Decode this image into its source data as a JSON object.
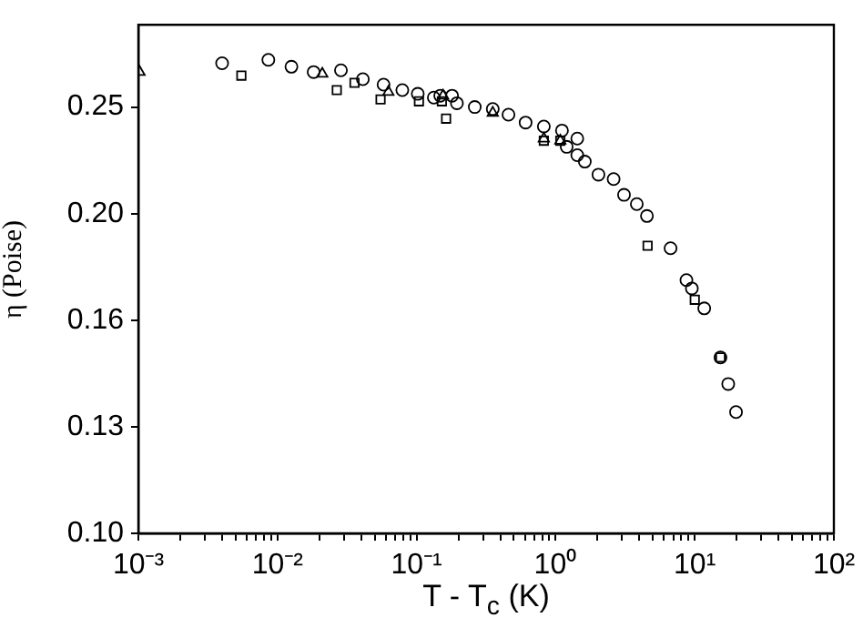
{
  "chart_data": {
    "type": "scatter",
    "xlabel": "T - T$_{c}$ (K)",
    "ylabel": "η (Poise)",
    "log": "xy",
    "grid": false,
    "legend": false,
    "xlim": [
      0.001,
      100
    ],
    "xticks": [
      {
        "value": 0.001,
        "label": "10⁻³"
      },
      {
        "value": 0.002,
        "label": null
      },
      {
        "value": 0.003,
        "label": null
      },
      {
        "value": 0.004,
        "label": null
      },
      {
        "value": 0.005,
        "label": null
      },
      {
        "value": 0.006,
        "label": null
      },
      {
        "value": 0.007,
        "label": null
      },
      {
        "value": 0.008,
        "label": null
      },
      {
        "value": 0.009,
        "label": null
      },
      {
        "value": 0.01,
        "label": "10⁻²"
      },
      {
        "value": 0.02,
        "label": null
      },
      {
        "value": 0.03,
        "label": null
      },
      {
        "value": 0.04,
        "label": null
      },
      {
        "value": 0.05,
        "label": null
      },
      {
        "value": 0.06,
        "label": null
      },
      {
        "value": 0.07,
        "label": null
      },
      {
        "value": 0.08,
        "label": null
      },
      {
        "value": 0.09,
        "label": null
      },
      {
        "value": 0.1,
        "label": "10⁻¹"
      },
      {
        "value": 0.2,
        "label": null
      },
      {
        "value": 0.3,
        "label": null
      },
      {
        "value": 0.4,
        "label": null
      },
      {
        "value": 0.5,
        "label": null
      },
      {
        "value": 0.6,
        "label": null
      },
      {
        "value": 0.7,
        "label": null
      },
      {
        "value": 0.8,
        "label": null
      },
      {
        "value": 0.9,
        "label": null
      },
      {
        "value": 1,
        "label": "10⁰"
      },
      {
        "value": 2,
        "label": null
      },
      {
        "value": 3,
        "label": null
      },
      {
        "value": 4,
        "label": null
      },
      {
        "value": 5,
        "label": null
      },
      {
        "value": 6,
        "label": null
      },
      {
        "value": 7,
        "label": null
      },
      {
        "value": 8,
        "label": null
      },
      {
        "value": 9,
        "label": null
      },
      {
        "value": 10,
        "label": "10¹"
      },
      {
        "value": 20,
        "label": null
      },
      {
        "value": 30,
        "label": null
      },
      {
        "value": 40,
        "label": null
      },
      {
        "value": 50,
        "label": null
      },
      {
        "value": 60,
        "label": null
      },
      {
        "value": 70,
        "label": null
      },
      {
        "value": 80,
        "label": null
      },
      {
        "value": 90,
        "label": null
      },
      {
        "value": 100,
        "label": "10²"
      }
    ],
    "ylim": [
      0.1024,
      0.297
    ],
    "yticks": [
      {
        "value": 0.1024,
        "label": "0.10"
      },
      {
        "value": 0.128,
        "label": "0.13"
      },
      0.16,
      {
        "value": 0.2,
        "label": "0.20"
      },
      0.25
    ],
    "series": [
      {
        "color": "#000000",
        "marker": "circle",
        "x": [
          0.004,
          0.0086,
          0.0126,
          0.0182,
          0.0286,
          0.0411,
          0.0579,
          0.079,
          0.102,
          0.133,
          0.148,
          0.18,
          0.195,
          0.262,
          0.353,
          0.458,
          0.608,
          0.822,
          1.11,
          1.2,
          1.43,
          1.43,
          1.62,
          2.03,
          2.61,
          3.1,
          3.83,
          4.53,
          6.7,
          8.71,
          9.53,
          11.7,
          15.3,
          17.4,
          19.8
        ],
        "values": [
          0.274,
          0.276,
          0.272,
          0.269,
          0.27,
          0.265,
          0.262,
          0.259,
          0.257,
          0.255,
          0.256,
          0.256,
          0.252,
          0.25,
          0.249,
          0.246,
          0.242,
          0.24,
          0.238,
          0.23,
          0.234,
          0.226,
          0.223,
          0.217,
          0.215,
          0.208,
          0.204,
          0.199,
          0.186,
          0.174,
          0.171,
          0.164,
          0.148,
          0.14,
          0.132
        ]
      },
      {
        "color": "#000000",
        "marker": "square",
        "x": [
          0.0055,
          0.0267,
          0.0358,
          0.0551,
          0.104,
          0.152,
          0.163,
          0.822,
          1.08,
          4.58,
          10,
          15.3
        ],
        "values": [
          0.267,
          0.259,
          0.263,
          0.254,
          0.253,
          0.253,
          0.244,
          0.233,
          0.233,
          0.187,
          0.167,
          0.148
        ]
      },
      {
        "color": "#000000",
        "marker": "triangle",
        "x": [
          0.00102,
          0.021,
          0.0627,
          0.155,
          0.353,
          0.822,
          1.08
        ],
        "values": [
          0.269,
          0.268,
          0.258,
          0.256,
          0.247,
          0.234,
          0.233
        ]
      }
    ]
  }
}
